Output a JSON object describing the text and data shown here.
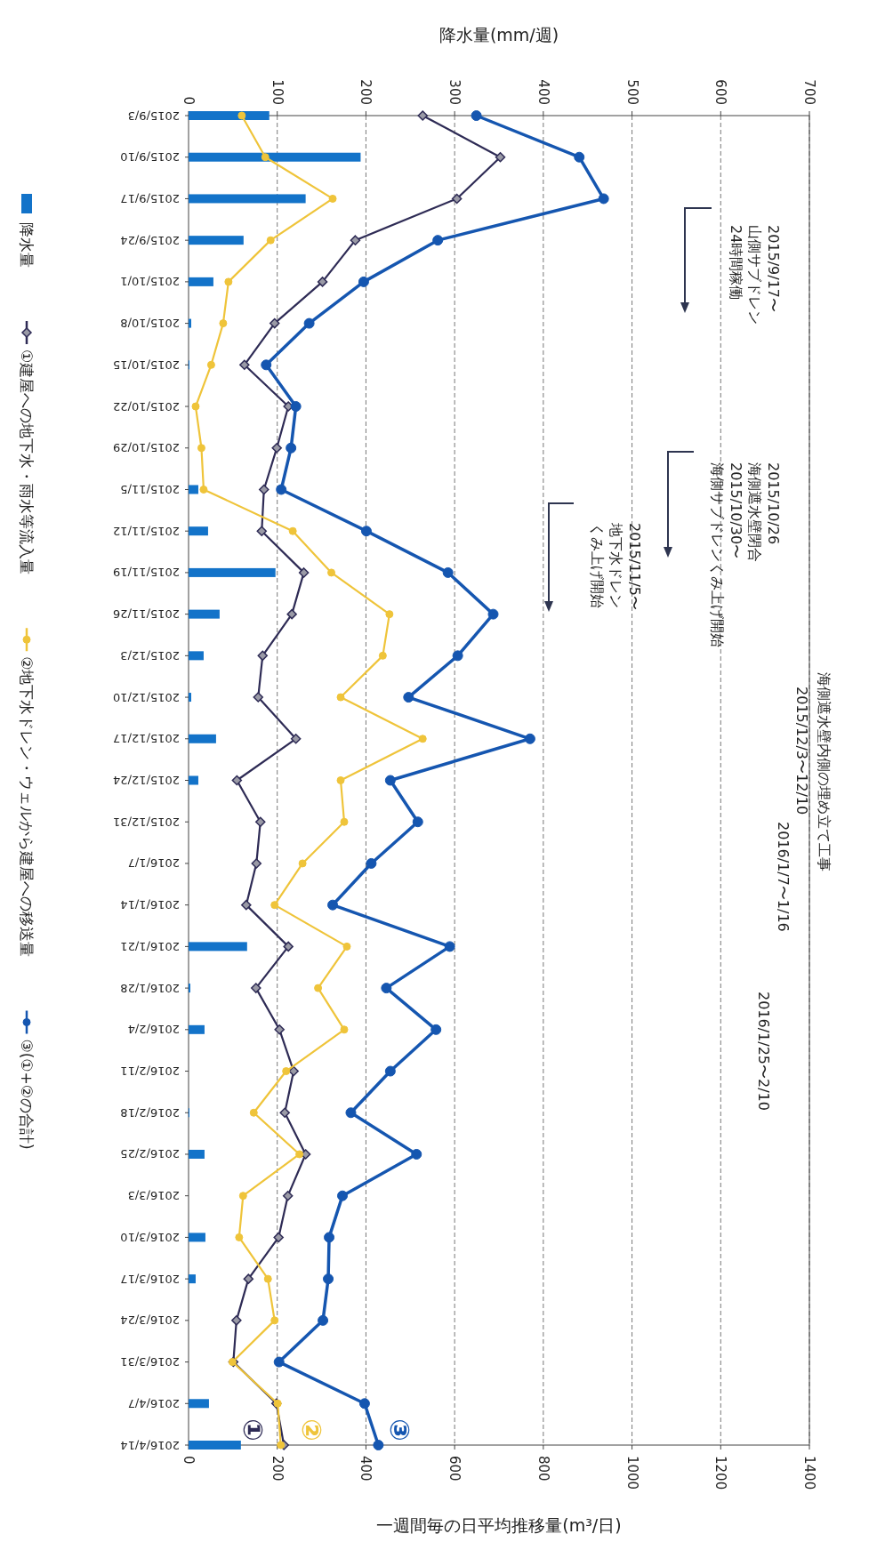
{
  "chart_data": {
    "type": "line",
    "orientation": "horizontal",
    "categories": [
      "2015/9/3",
      "2015/9/10",
      "2015/9/17",
      "2015/9/24",
      "2015/10/1",
      "2015/10/8",
      "2015/10/15",
      "2015/10/22",
      "2015/10/29",
      "2015/11/5",
      "2015/11/12",
      "2015/11/19",
      "2015/11/26",
      "2015/12/3",
      "2015/12/10",
      "2015/12/17",
      "2015/12/24",
      "2015/12/31",
      "2016/1/7",
      "2016/1/14",
      "2016/1/21",
      "2016/1/28",
      "2016/2/4",
      "2016/2/11",
      "2016/2/18",
      "2016/2/25",
      "2016/3/3",
      "2016/3/10",
      "2016/3/17",
      "2016/3/24",
      "2016/3/31",
      "2016/4/7",
      "2016/4/14"
    ],
    "series": [
      {
        "name": "降水量",
        "type": "bar",
        "axis": "x2",
        "color": "#1373c9",
        "values": [
          91,
          194,
          132,
          62,
          28,
          3,
          1,
          0,
          0,
          11,
          22,
          98,
          35,
          17,
          3,
          31,
          11,
          0,
          0,
          0,
          66,
          2,
          18,
          0,
          1,
          18,
          0,
          19,
          8,
          0,
          0,
          23,
          59
        ]
      },
      {
        "name": "①建屋への地下水・雨水等流入量",
        "marker": "diamond",
        "color": "#2e2b55",
        "values": [
          528,
          703,
          605,
          376,
          302,
          194,
          126,
          225,
          199,
          170,
          165,
          260,
          233,
          167,
          157,
          242,
          109,
          162,
          153,
          130,
          225,
          152,
          205,
          237,
          217,
          264,
          224,
          203,
          135,
          108,
          101,
          198,
          215
        ]
      },
      {
        "name": "②地下水ドレン・ウェルから建屋への移送量",
        "marker": "circle",
        "color": "#efc43a",
        "values": [
          120,
          173,
          325,
          185,
          90,
          78,
          51,
          16,
          29,
          34,
          235,
          322,
          453,
          438,
          343,
          528,
          343,
          351,
          257,
          194,
          357,
          292,
          351,
          220,
          147,
          250,
          123,
          114,
          179,
          194,
          99,
          201,
          208
        ]
      },
      {
        "name": "③(①+②の合計)",
        "marker": "circle",
        "color": "#1556b0",
        "values": [
          649,
          881,
          936,
          562,
          395,
          272,
          175,
          242,
          231,
          209,
          401,
          585,
          687,
          607,
          496,
          770,
          455,
          517,
          412,
          325,
          589,
          446,
          558,
          455,
          366,
          514,
          347,
          317,
          315,
          303,
          204,
          397,
          428
        ]
      }
    ],
    "xlim": [
      0,
      1400
    ],
    "xticks": [
      0,
      200,
      400,
      600,
      800,
      1000,
      1200,
      1400
    ],
    "x2lim": [
      0,
      700
    ],
    "x2ticks": [
      0,
      100,
      200,
      300,
      400,
      500,
      600,
      700
    ],
    "xlabel": "一週間毎の日平均推移量(m³/日)",
    "x2label": "降水量(mm/週)",
    "grid": "x",
    "legend": "left",
    "annotations": [
      "2015/9/17〜",
      "山側サブドレン",
      "24時間稼働",
      "2015/10/26",
      "海側遮水壁閉合",
      "2015/10/30〜",
      "海側サブドレンくみ上げ開始",
      "2015/11/5〜",
      "地下水ドレン",
      "くみ上げ開始",
      "海側遮水壁内側の埋め立て工事",
      "2015/12/3〜12/10",
      "2016/1/7〜1/16",
      "2016/1/25〜2/10",
      {
        "text": "①",
        "x": 215,
        "y": "2016/4/14"
      },
      {
        "text": "②",
        "x": 208,
        "y": "2016/4/14"
      },
      {
        "text": "③",
        "x": 428,
        "y": "2016/4/14"
      }
    ]
  }
}
